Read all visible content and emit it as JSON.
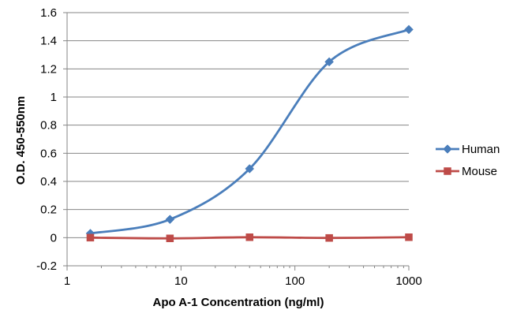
{
  "chart_data": {
    "type": "line",
    "title": "",
    "xlabel": "Apo A-1 Concentration  (ng/ml)",
    "ylabel": "O.D. 450-550nm",
    "xscale": "log",
    "xlim": [
      1,
      1000
    ],
    "ylim": [
      -0.2,
      1.6
    ],
    "xticks": [
      "1",
      "10",
      "100",
      "1000"
    ],
    "yticks": [
      "-0.2",
      "0",
      "0.2",
      "0.4",
      "0.6",
      "0.8",
      "1",
      "1.2",
      "1.4",
      "1.6"
    ],
    "grid": "horizontal",
    "legend_position": "right",
    "x": [
      1.6,
      8,
      40,
      200,
      1000
    ],
    "series": [
      {
        "name": "Human",
        "color": "#4a7ebb",
        "marker": "diamond",
        "values": [
          0.03,
          0.13,
          0.49,
          1.25,
          1.48
        ]
      },
      {
        "name": "Mouse",
        "color": "#be4b48",
        "marker": "square",
        "values": [
          0.0,
          -0.005,
          0.003,
          -0.002,
          0.003
        ]
      }
    ]
  }
}
